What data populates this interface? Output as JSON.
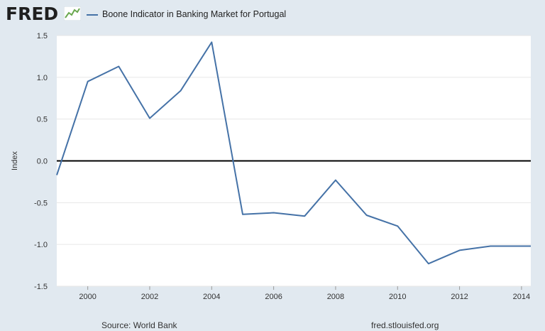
{
  "header": {
    "logo": "FRED",
    "legend_label": "Boone Indicator in Banking Market for Portugal"
  },
  "footer": {
    "source": "Source: World Bank",
    "url": "fred.stlouisfed.org"
  },
  "colors": {
    "series": "#4572a7",
    "zero_line": "#000000",
    "grid": "#e6e6e6",
    "frame_bg": "#e1e9f0",
    "plot_bg": "#ffffff"
  },
  "chart_data": {
    "type": "line",
    "title": "Boone Indicator in Banking Market for Portugal",
    "xlabel": "",
    "ylabel": "Index",
    "xlim": [
      1999,
      2014.3
    ],
    "ylim": [
      -1.5,
      1.5
    ],
    "yticks": [
      1.5,
      1.0,
      0.5,
      0.0,
      -0.5,
      -1.0,
      -1.5
    ],
    "ytick_labels": [
      "1.5",
      "1.0",
      "0.5",
      "0.0",
      "-0.5",
      "-1.0",
      "-1.5"
    ],
    "xticks": [
      2000,
      2002,
      2004,
      2006,
      2008,
      2010,
      2012,
      2014
    ],
    "xtick_labels": [
      "2000",
      "2002",
      "2004",
      "2006",
      "2008",
      "2010",
      "2012",
      "2014"
    ],
    "grid": true,
    "zero_line": true,
    "series": [
      {
        "name": "Boone Indicator in Banking Market for Portugal",
        "x": [
          1999,
          2000,
          2001,
          2002,
          2003,
          2004,
          2005,
          2006,
          2007,
          2008,
          2009,
          2010,
          2011,
          2012,
          2013,
          2014.3
        ],
        "values": [
          -0.17,
          0.95,
          1.13,
          0.51,
          0.84,
          1.42,
          -0.64,
          -0.62,
          -0.66,
          -0.23,
          -0.65,
          -0.78,
          -1.23,
          -1.07,
          -1.02,
          -1.02
        ]
      }
    ]
  }
}
